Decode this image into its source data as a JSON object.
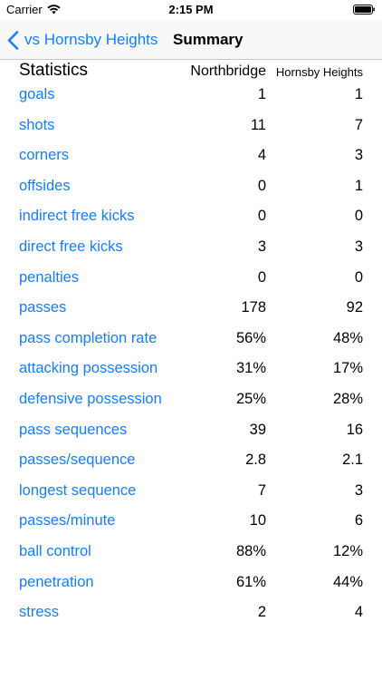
{
  "status_bar": {
    "carrier": "Carrier",
    "time": "2:15 PM"
  },
  "nav": {
    "back_label": "vs Hornsby Heights",
    "title": "Summary"
  },
  "header": {
    "title": "Statistics",
    "team_a": "Northbridge",
    "team_b": "Hornsby Heights"
  },
  "stats": [
    {
      "label": "goals",
      "a": "1",
      "b": "1"
    },
    {
      "label": "shots",
      "a": "11",
      "b": "7"
    },
    {
      "label": "corners",
      "a": "4",
      "b": "3"
    },
    {
      "label": "offsides",
      "a": "0",
      "b": "1"
    },
    {
      "label": "indirect free kicks",
      "a": "0",
      "b": "0"
    },
    {
      "label": "direct free kicks",
      "a": "3",
      "b": "3"
    },
    {
      "label": "penalties",
      "a": "0",
      "b": "0"
    },
    {
      "label": "passes",
      "a": "178",
      "b": "92"
    },
    {
      "label": "pass completion rate",
      "a": "56%",
      "b": "48%"
    },
    {
      "label": "attacking possession",
      "a": "31%",
      "b": "17%"
    },
    {
      "label": "defensive possession",
      "a": "25%",
      "b": "28%"
    },
    {
      "label": "pass sequences",
      "a": "39",
      "b": "16"
    },
    {
      "label": "passes/sequence",
      "a": "2.8",
      "b": "2.1"
    },
    {
      "label": "longest sequence",
      "a": "7",
      "b": "3"
    },
    {
      "label": "passes/minute",
      "a": "10",
      "b": "6"
    },
    {
      "label": "ball control",
      "a": "88%",
      "b": "12%"
    },
    {
      "label": "penetration",
      "a": "61%",
      "b": "44%"
    },
    {
      "label": "stress",
      "a": "2",
      "b": "4"
    }
  ],
  "colors": {
    "accent": "#147efb",
    "nav_background": "#f8f8f8"
  }
}
